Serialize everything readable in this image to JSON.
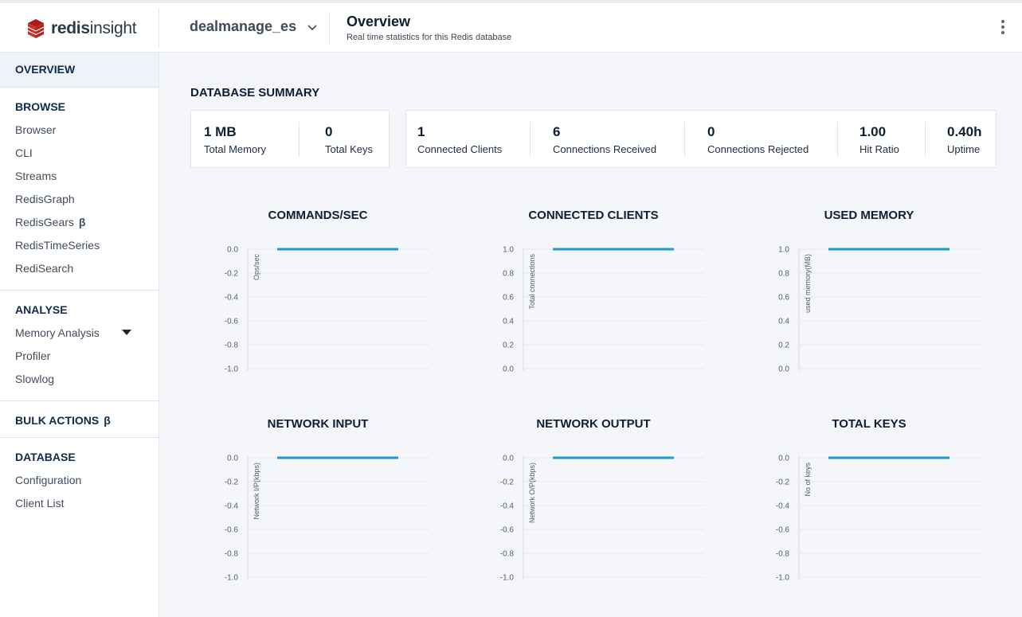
{
  "app": {
    "logo_text_bold": "redis",
    "logo_text": "insight",
    "database_name": "dealmanage_es",
    "page_title": "Overview",
    "page_subtitle": "Real time statistics for this Redis database"
  },
  "sidebar": {
    "active": "OVERVIEW",
    "sections": [
      {
        "heading": "BROWSE",
        "items": [
          "Browser",
          "CLI",
          "Streams",
          "RedisGraph",
          "RedisGears",
          "RedisTimeSeries",
          "RediSearch"
        ]
      },
      {
        "heading": "ANALYSE",
        "items": [
          "Memory Analysis",
          "Profiler",
          "Slowlog"
        ]
      },
      {
        "heading": "BULK ACTIONS"
      },
      {
        "heading": "DATABASE",
        "items": [
          "Configuration",
          "Client List"
        ]
      }
    ],
    "beta_symbol": "β"
  },
  "summary": {
    "title": "DATABASE SUMMARY",
    "total_memory": {
      "value": "1 MB",
      "label": "Total Memory"
    },
    "total_keys": {
      "value": "0",
      "label": "Total Keys"
    },
    "connected_clients": {
      "value": "1",
      "label": "Connected Clients"
    },
    "connections_received": {
      "value": "6",
      "label": "Connections Received"
    },
    "connections_rejected": {
      "value": "0",
      "label": "Connections Rejected"
    },
    "hit_ratio": {
      "value": "1.00",
      "label": "Hit Ratio"
    },
    "uptime": {
      "value": "0.40h",
      "label": "Uptime"
    }
  },
  "colors": {
    "line": "#1d9ad0",
    "grid": "#e8e8e8",
    "accent_logo": "#d82c20"
  },
  "chart_data": [
    {
      "type": "line",
      "title": "COMMANDS/SEC",
      "ylabel": "Ops/sec",
      "ylim": [
        -1.0,
        0.0
      ],
      "yticks": [
        "0.0",
        "-0.2",
        "-0.4",
        "-0.6",
        "-0.8",
        "-1.0"
      ],
      "series": [
        {
          "values": [
            0.0,
            0.0
          ]
        }
      ]
    },
    {
      "type": "line",
      "title": "CONNECTED CLIENTS",
      "ylabel": "Total connections",
      "ylim": [
        0.0,
        1.0
      ],
      "yticks": [
        "1.0",
        "0.8",
        "0.6",
        "0.4",
        "0.2",
        "0.0"
      ],
      "series": [
        {
          "values": [
            1.0,
            1.0
          ]
        }
      ]
    },
    {
      "type": "line",
      "title": "USED MEMORY",
      "ylabel": "used memory(MB)",
      "ylim": [
        0.0,
        1.0
      ],
      "yticks": [
        "1.0",
        "0.8",
        "0.6",
        "0.4",
        "0.2",
        "0.0"
      ],
      "series": [
        {
          "values": [
            1.0,
            1.0
          ]
        }
      ]
    },
    {
      "type": "line",
      "title": "NETWORK INPUT",
      "ylabel": "Network I/P(kbps)",
      "ylim": [
        -1.0,
        0.0
      ],
      "yticks": [
        "0.0",
        "-0.2",
        "-0.4",
        "-0.6",
        "-0.8",
        "-1.0"
      ],
      "series": [
        {
          "values": [
            0.0,
            0.0
          ]
        }
      ]
    },
    {
      "type": "line",
      "title": "NETWORK OUTPUT",
      "ylabel": "Network O/P(kbps)",
      "ylim": [
        -1.0,
        0.0
      ],
      "yticks": [
        "0.0",
        "-0.2",
        "-0.4",
        "-0.6",
        "-0.8",
        "-1.0"
      ],
      "series": [
        {
          "values": [
            0.0,
            0.0
          ]
        }
      ]
    },
    {
      "type": "line",
      "title": "TOTAL KEYS",
      "ylabel": "No of keys",
      "ylim": [
        -1.0,
        0.0
      ],
      "yticks": [
        "0.0",
        "-0.2",
        "-0.4",
        "-0.6",
        "-0.8",
        "-1.0"
      ],
      "series": [
        {
          "values": [
            0.0,
            0.0
          ]
        }
      ]
    }
  ]
}
